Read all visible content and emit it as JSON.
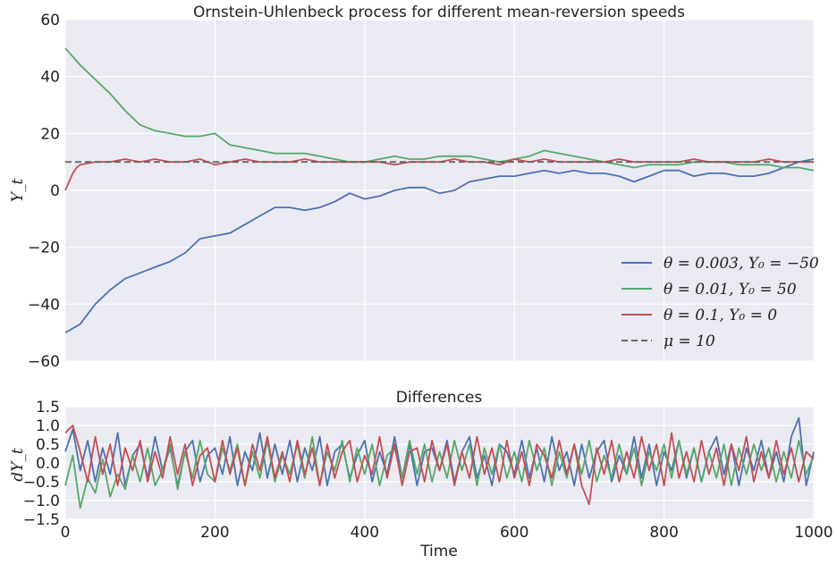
{
  "chart_data": [
    {
      "type": "line",
      "title": "Ornstein-Uhlenbeck process for different mean-reversion speeds",
      "ylabel": "Y_t",
      "xlim": [
        0,
        1000
      ],
      "ylim": [
        -60,
        60
      ],
      "yticks": [
        "60",
        "40",
        "20",
        "0",
        "−20",
        "−40",
        "−60"
      ],
      "ytick_values": [
        60,
        40,
        20,
        0,
        -20,
        -40,
        -60
      ],
      "xtick_values": [
        0,
        200,
        400,
        600,
        800,
        1000
      ],
      "grid": true,
      "legend_position": "lower-right",
      "series": [
        {
          "name": "θ = 0.003, Y₀ = −50",
          "color": "#4c72b0",
          "x": [
            0,
            20,
            40,
            60,
            80,
            100,
            120,
            140,
            160,
            180,
            200,
            220,
            240,
            260,
            280,
            300,
            320,
            340,
            360,
            380,
            400,
            420,
            440,
            460,
            480,
            500,
            520,
            540,
            560,
            580,
            600,
            620,
            640,
            660,
            680,
            700,
            720,
            740,
            760,
            780,
            800,
            820,
            840,
            860,
            880,
            900,
            920,
            940,
            960,
            980,
            1000
          ],
          "y": [
            -50,
            -47,
            -40,
            -35,
            -31,
            -29,
            -27,
            -25,
            -22,
            -17,
            -16,
            -15,
            -12,
            -9,
            -6,
            -6,
            -7,
            -6,
            -4,
            -1,
            -3,
            -2,
            0,
            1,
            1,
            -1,
            0,
            3,
            4,
            5,
            5,
            6,
            7,
            6,
            7,
            6,
            6,
            5,
            3,
            5,
            7,
            7,
            5,
            6,
            6,
            5,
            5,
            6,
            8,
            10,
            11
          ]
        },
        {
          "name": "θ = 0.01, Y₀ = 50",
          "color": "#55a868",
          "x": [
            0,
            20,
            40,
            60,
            80,
            100,
            120,
            140,
            160,
            180,
            200,
            220,
            240,
            260,
            280,
            300,
            320,
            340,
            360,
            380,
            400,
            420,
            440,
            460,
            480,
            500,
            520,
            540,
            560,
            580,
            600,
            620,
            640,
            660,
            680,
            700,
            720,
            740,
            760,
            780,
            800,
            820,
            840,
            860,
            880,
            900,
            920,
            940,
            960,
            980,
            1000
          ],
          "y": [
            50,
            44,
            39,
            34,
            28,
            23,
            21,
            20,
            19,
            19,
            20,
            16,
            15,
            14,
            13,
            13,
            13,
            12,
            11,
            10,
            10,
            11,
            12,
            11,
            11,
            12,
            12,
            12,
            11,
            10,
            11,
            12,
            14,
            13,
            12,
            11,
            10,
            9,
            8,
            9,
            9,
            9,
            10,
            10,
            10,
            9,
            9,
            9,
            8,
            8,
            7
          ]
        },
        {
          "name": "θ = 0.1, Y₀ = 0",
          "color": "#c44e52",
          "x": [
            0,
            5,
            10,
            15,
            20,
            40,
            60,
            80,
            100,
            120,
            140,
            160,
            180,
            200,
            220,
            240,
            260,
            280,
            300,
            320,
            340,
            360,
            380,
            400,
            420,
            440,
            460,
            480,
            500,
            520,
            540,
            560,
            580,
            600,
            620,
            640,
            660,
            680,
            700,
            720,
            740,
            760,
            780,
            800,
            820,
            840,
            860,
            880,
            900,
            920,
            940,
            960,
            980,
            1000
          ],
          "y": [
            0,
            3,
            6,
            8,
            9,
            10,
            10,
            11,
            10,
            11,
            10,
            10,
            11,
            9,
            10,
            11,
            10,
            10,
            10,
            11,
            10,
            10,
            10,
            10,
            10,
            9,
            10,
            10,
            10,
            11,
            10,
            10,
            9,
            11,
            10,
            11,
            10,
            10,
            10,
            10,
            11,
            10,
            10,
            10,
            10,
            11,
            10,
            10,
            10,
            10,
            11,
            10,
            10,
            10
          ]
        },
        {
          "name": "μ = 10",
          "color": "#666666",
          "dashed": true,
          "x": [
            0,
            1000
          ],
          "y": [
            10,
            10
          ]
        }
      ]
    },
    {
      "type": "line",
      "title": "Differences",
      "xlabel": "Time",
      "ylabel": "dY_t",
      "xlim": [
        0,
        1000
      ],
      "ylim": [
        -1.5,
        1.5
      ],
      "yticks": [
        "1.5",
        "1.0",
        "0.5",
        "0.0",
        "−0.5",
        "−1.0",
        "−1.5"
      ],
      "ytick_values": [
        1.5,
        1.0,
        0.5,
        0.0,
        -0.5,
        -1.0,
        -1.5
      ],
      "xticks": [
        "0",
        "200",
        "400",
        "600",
        "800",
        "1000"
      ],
      "xtick_values": [
        0,
        200,
        400,
        600,
        800,
        1000
      ],
      "grid": true,
      "series": [
        {
          "name": "",
          "color": "#4c72b0",
          "x": [
            0,
            10,
            20,
            30,
            40,
            50,
            60,
            70,
            80,
            90,
            100,
            110,
            120,
            130,
            140,
            150,
            160,
            170,
            180,
            190,
            200,
            210,
            220,
            230,
            240,
            250,
            260,
            270,
            280,
            290,
            300,
            310,
            320,
            330,
            340,
            350,
            360,
            370,
            380,
            390,
            400,
            410,
            420,
            430,
            440,
            450,
            460,
            470,
            480,
            490,
            500,
            510,
            520,
            530,
            540,
            550,
            560,
            570,
            580,
            590,
            600,
            610,
            620,
            630,
            640,
            650,
            660,
            670,
            680,
            690,
            700,
            710,
            720,
            730,
            740,
            750,
            760,
            770,
            780,
            790,
            800,
            810,
            820,
            830,
            840,
            850,
            860,
            870,
            880,
            890,
            900,
            910,
            920,
            930,
            940,
            950,
            960,
            970,
            980,
            990,
            1000
          ],
          "y": [
            0.3,
            0.9,
            -0.2,
            0.6,
            -0.5,
            0.4,
            -0.3,
            0.8,
            -0.6,
            0.2,
            0.5,
            -0.4,
            0.7,
            -0.2,
            0.4,
            -0.6,
            0.3,
            0.6,
            -0.5,
            0.2,
            0.4,
            -0.3,
            0.7,
            -0.6,
            0.3,
            -0.2,
            0.8,
            -0.4,
            0.5,
            -0.3,
            0.6,
            -0.5,
            0.4,
            -0.2,
            0.7,
            -0.6,
            0.3,
            0.5,
            -0.4,
            0.2,
            0.6,
            -0.5,
            0.3,
            -0.3,
            0.7,
            -0.4,
            0.5,
            -0.6,
            0.3,
            0.4,
            -0.2,
            0.6,
            -0.5,
            0.3,
            0.7,
            -0.4,
            0.2,
            -0.6,
            0.5,
            0.3,
            -0.3,
            0.6,
            -0.4,
            0.4,
            -0.5,
            0.7,
            -0.2,
            0.3,
            -0.6,
            0.5,
            -0.4,
            0.3,
            0.6,
            -0.5,
            0.2,
            -0.3,
            0.7,
            -0.4,
            0.5,
            -0.6,
            0.3,
            -0.2,
            0.6,
            -0.4,
            0.4,
            -0.5,
            0.3,
            0.7,
            -0.3,
            0.5,
            -0.6,
            0.4,
            -0.2,
            0.6,
            -0.4,
            0.3,
            -0.5,
            0.7,
            1.2,
            -0.6,
            0.3
          ]
        },
        {
          "name": "",
          "color": "#55a868",
          "x": [
            0,
            10,
            20,
            30,
            40,
            50,
            60,
            70,
            80,
            90,
            100,
            110,
            120,
            130,
            140,
            150,
            160,
            170,
            180,
            190,
            200,
            210,
            220,
            230,
            240,
            250,
            260,
            270,
            280,
            290,
            300,
            310,
            320,
            330,
            340,
            350,
            360,
            370,
            380,
            390,
            400,
            410,
            420,
            430,
            440,
            450,
            460,
            470,
            480,
            490,
            500,
            510,
            520,
            530,
            540,
            550,
            560,
            570,
            580,
            590,
            600,
            610,
            620,
            630,
            640,
            650,
            660,
            670,
            680,
            690,
            700,
            710,
            720,
            730,
            740,
            750,
            760,
            770,
            780,
            790,
            800,
            810,
            820,
            830,
            840,
            850,
            860,
            870,
            880,
            890,
            900,
            910,
            920,
            930,
            940,
            950,
            960,
            970,
            980,
            990,
            1000
          ],
          "y": [
            -0.6,
            0.2,
            -1.2,
            -0.4,
            -0.8,
            0.1,
            -0.9,
            -0.3,
            -0.7,
            0.2,
            -0.5,
            0.4,
            -0.6,
            -0.2,
            0.5,
            -0.7,
            0.3,
            -0.4,
            0.6,
            -0.3,
            -0.5,
            0.4,
            -0.2,
            0.5,
            -0.6,
            0.3,
            -0.4,
            0.6,
            -0.5,
            0.2,
            -0.3,
            0.5,
            -0.4,
            0.7,
            -0.6,
            0.3,
            -0.2,
            0.6,
            -0.5,
            0.4,
            -0.3,
            0.5,
            -0.6,
            0.2,
            0.4,
            -0.4,
            0.6,
            -0.3,
            0.5,
            -0.5,
            0.3,
            -0.4,
            0.6,
            -0.2,
            0.5,
            -0.6,
            0.4,
            -0.3,
            0.5,
            -0.4,
            0.3,
            -0.5,
            0.6,
            -0.2,
            0.4,
            -0.6,
            0.3,
            -0.4,
            0.5,
            -0.3,
            0.6,
            -0.5,
            0.2,
            -0.4,
            0.5,
            -0.3,
            0.4,
            -0.6,
            0.3,
            -0.2,
            0.5,
            -0.4,
            0.6,
            -0.3,
            0.4,
            -0.5,
            0.3,
            -0.4,
            0.5,
            -0.6,
            0.4,
            -0.3,
            0.5,
            -0.2,
            0.4,
            -0.5,
            0.3,
            -0.4,
            0.6,
            -0.3,
            0.2
          ]
        },
        {
          "name": "",
          "color": "#c44e52",
          "x": [
            0,
            10,
            20,
            30,
            40,
            50,
            60,
            70,
            80,
            90,
            100,
            110,
            120,
            130,
            140,
            150,
            160,
            170,
            180,
            190,
            200,
            210,
            220,
            230,
            240,
            250,
            260,
            270,
            280,
            290,
            300,
            310,
            320,
            330,
            340,
            350,
            360,
            370,
            380,
            390,
            400,
            410,
            420,
            430,
            440,
            450,
            460,
            470,
            480,
            490,
            500,
            510,
            520,
            530,
            540,
            550,
            560,
            570,
            580,
            590,
            600,
            610,
            620,
            630,
            640,
            650,
            660,
            670,
            680,
            690,
            700,
            710,
            720,
            730,
            740,
            750,
            760,
            770,
            780,
            790,
            800,
            810,
            820,
            830,
            840,
            850,
            860,
            870,
            880,
            890,
            900,
            910,
            920,
            930,
            940,
            950,
            960,
            970,
            980,
            990,
            1000
          ],
          "y": [
            0.8,
            1.0,
            0.3,
            -0.5,
            0.7,
            -0.3,
            0.5,
            -0.6,
            0.4,
            -0.2,
            0.6,
            -0.5,
            0.3,
            -0.4,
            0.7,
            -0.3,
            0.5,
            -0.6,
            0.2,
            0.4,
            -0.5,
            0.6,
            -0.3,
            0.4,
            -0.6,
            0.5,
            -0.2,
            0.7,
            -0.4,
            0.3,
            -0.5,
            0.6,
            -0.3,
            0.4,
            -0.6,
            0.5,
            -0.4,
            0.3,
            0.6,
            -0.5,
            0.2,
            -0.3,
            0.7,
            -0.4,
            0.5,
            -0.6,
            0.3,
            0.4,
            -0.5,
            0.6,
            -0.2,
            0.5,
            -0.6,
            0.3,
            -0.4,
            0.7,
            -0.3,
            0.4,
            -0.5,
            0.6,
            -0.4,
            0.3,
            -0.6,
            0.5,
            0.2,
            -0.4,
            0.6,
            -0.3,
            0.5,
            -0.6,
            -1.1,
            0.4,
            -0.3,
            0.6,
            -0.5,
            0.3,
            -0.4,
            0.7,
            -0.2,
            0.5,
            -0.6,
            0.8,
            -0.4,
            0.3,
            -0.5,
            0.6,
            -0.3,
            0.4,
            -0.6,
            0.5,
            -0.2,
            0.7,
            -0.5,
            0.3,
            -0.4,
            0.6,
            -0.3,
            0.4,
            -0.5,
            0.3,
            0.1
          ]
        }
      ]
    }
  ]
}
